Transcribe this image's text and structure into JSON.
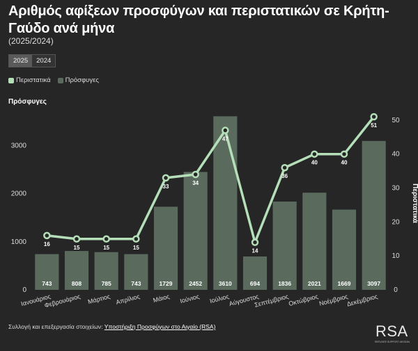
{
  "title": "Αριθμός αφίξεων προσφύγων και περιστατικών σε Κρήτη-Γαύδο ανά μήνα",
  "subtitle": "(2025/2024)",
  "tabs": [
    {
      "label": "2025",
      "active": true
    },
    {
      "label": "2024",
      "active": false
    }
  ],
  "legend": [
    {
      "label": "Περιστατικά",
      "color": "#b5dfb8"
    },
    {
      "label": "Πρόσφυγες",
      "color": "#5a6b5e"
    }
  ],
  "footer": {
    "prefix": "Συλλογή και επεξεργασία στοιχείων: ",
    "link": "Υποστήριξη Προσφύγων στο Αιγαίο (RSA)"
  },
  "logo": {
    "text": "RSA",
    "subtext": "REFUGEE SUPPORT AEGEAN"
  },
  "colors": {
    "background": "#262626",
    "bar": "#5a6b5e",
    "line": "#b5dfb8"
  },
  "chart_data": {
    "type": "bar+line",
    "left_axis_title": "Πρόσφυγες",
    "right_axis_title": "Περιστατικά",
    "categories": [
      "Ιανουάριος",
      "Φεβρουάριος",
      "Μάρτιος",
      "Απρίλιος",
      "Μάιος",
      "Ιούνιος",
      "Ιούλιος",
      "Αύγουστος",
      "Σεπτέμβριος",
      "Οκτώβριος",
      "Νοέμβριος",
      "Δεκέμβριος"
    ],
    "series": [
      {
        "name": "Πρόσφυγες",
        "type": "bar",
        "axis": "left",
        "values": [
          743,
          808,
          785,
          743,
          1729,
          2452,
          3610,
          694,
          1836,
          2021,
          1669,
          3097
        ]
      },
      {
        "name": "Περιστατικά",
        "type": "line",
        "axis": "right",
        "values": [
          16,
          15,
          15,
          15,
          33,
          34,
          47,
          14,
          36,
          40,
          40,
          51
        ]
      }
    ],
    "left_ticks": [
      0,
      1000,
      2000,
      3000
    ],
    "left_ylim": [
      0,
      3600
    ],
    "right_ticks": [
      0,
      10,
      20,
      30,
      40,
      50
    ],
    "right_ylim": [
      0,
      51
    ]
  }
}
